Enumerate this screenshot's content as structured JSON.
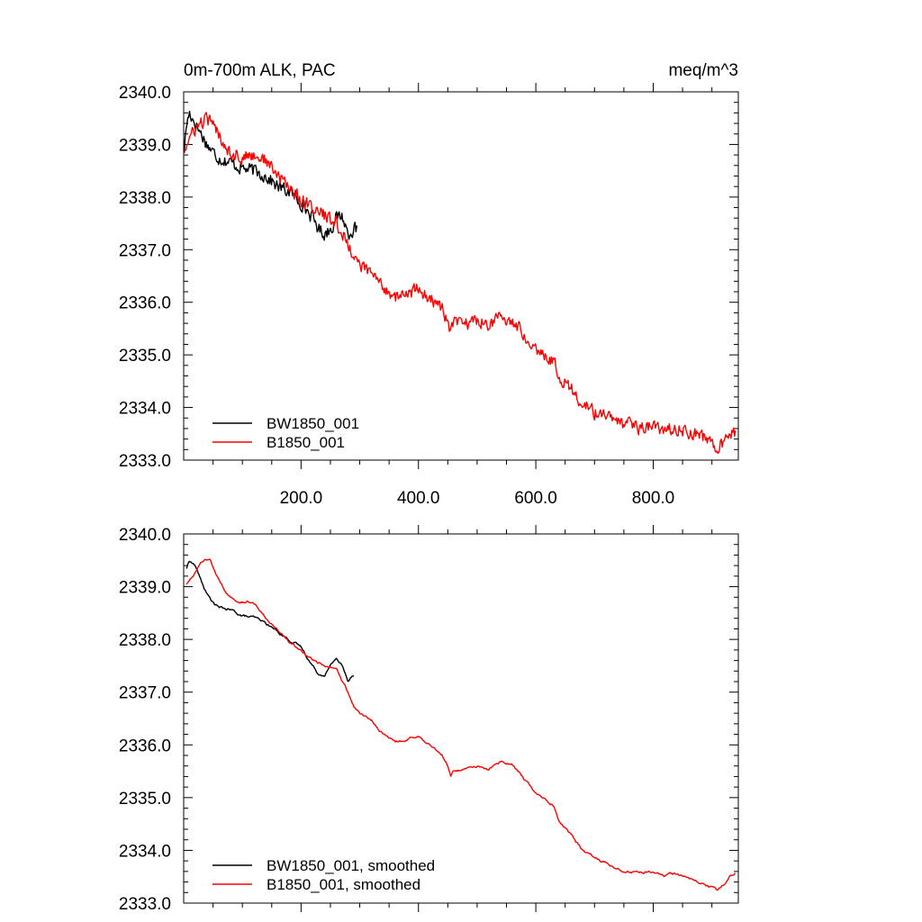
{
  "chart_data": [
    {
      "type": "line",
      "title_left": "0m-700m ALK, PAC",
      "title_right": "meq/m^3",
      "xlim": [
        0,
        945
      ],
      "ylim": [
        2333.0,
        2340.0
      ],
      "y_ticks": [
        2333.0,
        2334.0,
        2335.0,
        2336.0,
        2337.0,
        2338.0,
        2339.0,
        2340.0
      ],
      "y_tick_labels": [
        "2333.0",
        "2334.0",
        "2335.0",
        "2336.0",
        "2337.0",
        "2338.0",
        "2339.0",
        "2340.0"
      ],
      "x_ticks": [
        200,
        400,
        600,
        800
      ],
      "x_tick_labels": [
        "200.0",
        "400.0",
        "600.0",
        "800.0"
      ],
      "noise": 0.18,
      "series": [
        {
          "name": "BW1850_001",
          "color": "#000000",
          "x": [
            1,
            5,
            10,
            20,
            30,
            40,
            50,
            60,
            80,
            100,
            120,
            140,
            160,
            180,
            200,
            220,
            230,
            240,
            250,
            260,
            270,
            280,
            290,
            295
          ],
          "y": [
            2338.9,
            2339.4,
            2339.6,
            2339.4,
            2339.2,
            2339.0,
            2338.85,
            2338.75,
            2338.65,
            2338.55,
            2338.5,
            2338.4,
            2338.2,
            2338.1,
            2337.9,
            2337.6,
            2337.4,
            2337.3,
            2337.4,
            2337.6,
            2337.65,
            2337.3,
            2337.4,
            2337.35
          ]
        },
        {
          "name": "B1850_001",
          "color": "#ff0000",
          "x": [
            1,
            10,
            20,
            30,
            40,
            50,
            60,
            70,
            80,
            100,
            120,
            140,
            160,
            180,
            200,
            220,
            240,
            260,
            270,
            280,
            290,
            300,
            320,
            340,
            360,
            380,
            400,
            420,
            440,
            450,
            455,
            460,
            480,
            500,
            520,
            540,
            560,
            580,
            600,
            620,
            630,
            640,
            660,
            680,
            700,
            720,
            740,
            760,
            780,
            800,
            820,
            840,
            860,
            880,
            900,
            910,
            920,
            930,
            940
          ],
          "y": [
            2338.9,
            2339.1,
            2339.3,
            2339.4,
            2339.5,
            2339.35,
            2339.2,
            2339.0,
            2338.85,
            2338.75,
            2338.8,
            2338.7,
            2338.4,
            2338.2,
            2337.95,
            2337.8,
            2337.65,
            2337.5,
            2337.3,
            2337.1,
            2336.9,
            2336.7,
            2336.55,
            2336.3,
            2336.1,
            2336.15,
            2336.25,
            2336.05,
            2335.9,
            2335.6,
            2335.4,
            2335.6,
            2335.6,
            2335.65,
            2335.6,
            2335.7,
            2335.65,
            2335.4,
            2335.15,
            2334.95,
            2334.9,
            2334.6,
            2334.35,
            2334.05,
            2333.9,
            2333.85,
            2333.7,
            2333.65,
            2333.6,
            2333.65,
            2333.55,
            2333.6,
            2333.55,
            2333.45,
            2333.35,
            2333.25,
            2333.3,
            2333.45,
            2333.55
          ]
        }
      ],
      "legend": [
        "BW1850_001",
        "B1850_001"
      ]
    },
    {
      "type": "line",
      "xlim": [
        0,
        945
      ],
      "ylim": [
        2333.0,
        2340.0
      ],
      "y_ticks": [
        2333.0,
        2334.0,
        2335.0,
        2336.0,
        2337.0,
        2338.0,
        2339.0,
        2340.0
      ],
      "y_tick_labels": [
        "2333.0",
        "2334.0",
        "2335.0",
        "2336.0",
        "2337.0",
        "2338.0",
        "2339.0",
        "2340.0"
      ],
      "x_ticks": [
        200,
        400,
        600,
        800
      ],
      "x_tick_labels": [],
      "noise": 0.04,
      "series": [
        {
          "name": "BW1850_001, smoothed",
          "color": "#000000",
          "x": [
            5,
            10,
            20,
            30,
            40,
            50,
            60,
            80,
            100,
            120,
            140,
            160,
            180,
            200,
            220,
            230,
            240,
            250,
            260,
            270,
            280,
            285,
            290
          ],
          "y": [
            2339.35,
            2339.5,
            2339.4,
            2339.1,
            2338.85,
            2338.7,
            2338.6,
            2338.55,
            2338.45,
            2338.4,
            2338.3,
            2338.15,
            2338.0,
            2337.85,
            2337.5,
            2337.35,
            2337.35,
            2337.5,
            2337.65,
            2337.5,
            2337.2,
            2337.3,
            2337.35
          ]
        },
        {
          "name": "B1850_001, smoothed",
          "color": "#ff0000",
          "x": [
            5,
            20,
            30,
            40,
            45,
            50,
            60,
            70,
            80,
            100,
            120,
            140,
            160,
            180,
            200,
            220,
            240,
            260,
            270,
            280,
            290,
            300,
            320,
            340,
            360,
            380,
            400,
            420,
            440,
            450,
            455,
            460,
            480,
            500,
            520,
            540,
            560,
            580,
            600,
            620,
            630,
            640,
            660,
            680,
            700,
            720,
            740,
            760,
            780,
            800,
            820,
            840,
            860,
            880,
            900,
            910,
            920,
            930,
            940
          ],
          "y": [
            2339.05,
            2339.3,
            2339.45,
            2339.5,
            2339.5,
            2339.35,
            2339.1,
            2338.9,
            2338.8,
            2338.75,
            2338.7,
            2338.45,
            2338.2,
            2337.95,
            2337.75,
            2337.6,
            2337.5,
            2337.4,
            2337.2,
            2337.0,
            2336.75,
            2336.6,
            2336.45,
            2336.2,
            2336.05,
            2336.1,
            2336.15,
            2336.0,
            2335.85,
            2335.6,
            2335.4,
            2335.5,
            2335.55,
            2335.6,
            2335.55,
            2335.7,
            2335.65,
            2335.35,
            2335.1,
            2334.95,
            2334.85,
            2334.55,
            2334.3,
            2334.0,
            2333.85,
            2333.75,
            2333.65,
            2333.6,
            2333.55,
            2333.6,
            2333.5,
            2333.55,
            2333.45,
            2333.4,
            2333.3,
            2333.25,
            2333.35,
            2333.5,
            2333.6
          ]
        }
      ],
      "legend": [
        "BW1850_001, smoothed",
        "B1850_001, smoothed"
      ]
    }
  ]
}
